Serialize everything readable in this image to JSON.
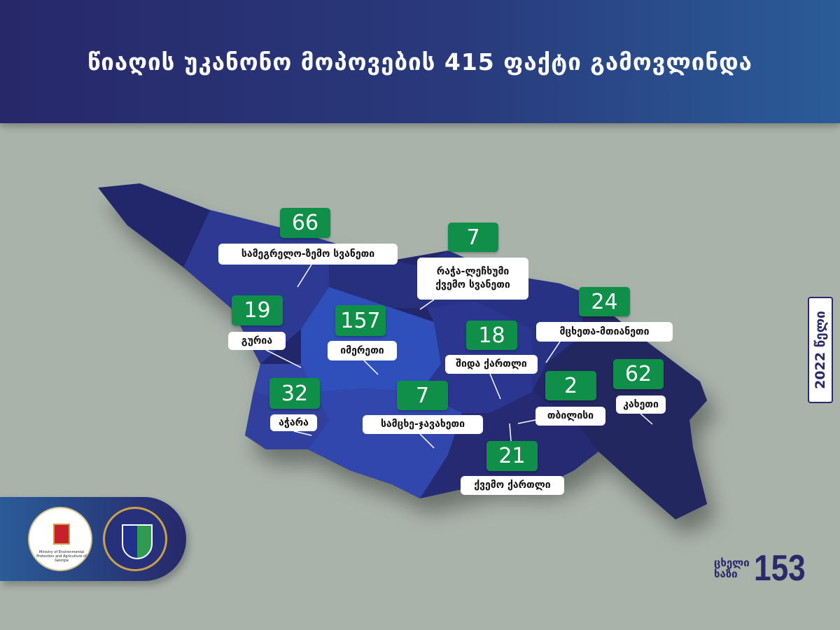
{
  "header": {
    "title": "წიაღის უკანონო მოპოვების 415 ფაქტი გამოვლინდა"
  },
  "colors": {
    "header_start": "#27286a",
    "header_end": "#2a5c98",
    "badge_green": "#0f8f47",
    "background": "#a9b3aa",
    "map_dark": "#24286a",
    "map_mid": "#2f3f98",
    "map_light": "#3a56c0"
  },
  "regions": [
    {
      "name": "სამეგრელო-ზემო სვანეთი",
      "count": "66"
    },
    {
      "name": "რაჭა-ლეჩხუმი",
      "name2": "ქვემო სვანეთი",
      "count": "7"
    },
    {
      "name": "გურია",
      "count": "19"
    },
    {
      "name": "იმერეთი",
      "count": "157"
    },
    {
      "name": "მცხეთა-მთიანეთი",
      "count": "24"
    },
    {
      "name": "შიდა ქართლი",
      "count": "18"
    },
    {
      "name": "აჭარა",
      "count": "32"
    },
    {
      "name": "სამცხე-ჯავახეთი",
      "count": "7"
    },
    {
      "name": "თბილისი",
      "count": "2"
    },
    {
      "name": "კახეთი",
      "count": "62"
    },
    {
      "name": "ქვემო ქართლი",
      "count": "21"
    }
  ],
  "year": "2022 წელი",
  "logos": {
    "ministry_caption": "Ministry of Environmental Protection and Agriculture of Georgia"
  },
  "hotline": {
    "line1": "ცხელი",
    "line2": "ხაზი",
    "number": "153"
  }
}
